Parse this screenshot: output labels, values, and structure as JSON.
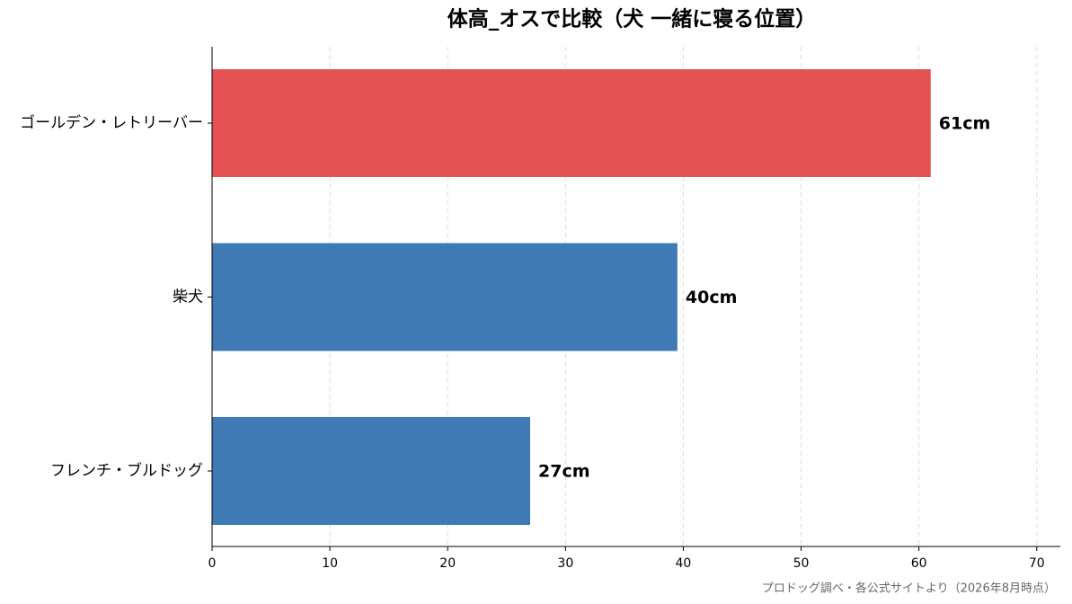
{
  "chart_data": {
    "type": "barh",
    "title": "体高_オスで比較（犬 一緒に寝る位置）",
    "categories": [
      "ゴールデン・レトリーバー",
      "柴犬",
      "フレンチ・ブルドッグ"
    ],
    "values": [
      61,
      39.5,
      27
    ],
    "value_labels": [
      "61cm",
      "40cm",
      "27cm"
    ],
    "colors": [
      "#e45253",
      "#3f7ab5",
      "#3f7ab5"
    ],
    "xlim": [
      0,
      72
    ],
    "xticks": [
      0,
      10,
      20,
      30,
      40,
      50,
      60,
      70
    ],
    "grid": true,
    "source": "プロドッグ調べ・各公式サイトより（2026年8月時点）"
  }
}
